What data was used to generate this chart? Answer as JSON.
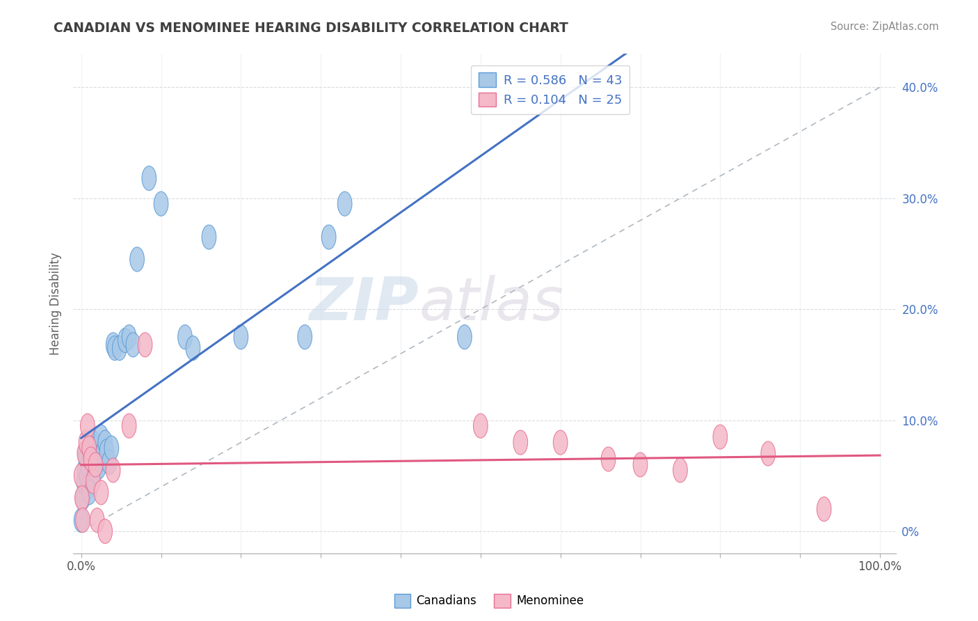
{
  "title": "CANADIAN VS MENOMINEE HEARING DISABILITY CORRELATION CHART",
  "source_text": "Source: ZipAtlas.com",
  "ylabel": "Hearing Disability",
  "xlim": [
    0,
    1.0
  ],
  "ylim": [
    -0.02,
    0.43
  ],
  "ytick_vals": [
    0.0,
    0.1,
    0.2,
    0.3,
    0.4
  ],
  "blue_color": "#a8c8e8",
  "blue_edge_color": "#5b9bd5",
  "pink_color": "#f4b8c8",
  "pink_edge_color": "#e87090",
  "blue_line_color": "#4472c4",
  "pink_line_color": "#e05880",
  "dash_color": "#b0b8c0",
  "watermark_zip": "ZIP",
  "watermark_atlas": "atlas",
  "title_color": "#404040",
  "axis_label_color": "#606060",
  "tick_color": "#505050",
  "ytick_color": "#4472c4",
  "grid_color": "#d8dce0",
  "background_color": "#ffffff",
  "canadians_x": [
    0.0,
    0.002,
    0.003,
    0.004,
    0.005,
    0.006,
    0.007,
    0.008,
    0.009,
    0.01,
    0.011,
    0.012,
    0.013,
    0.015,
    0.016,
    0.017,
    0.018,
    0.02,
    0.021,
    0.022,
    0.025,
    0.027,
    0.03,
    0.032,
    0.035,
    0.038,
    0.04,
    0.042,
    0.048,
    0.055,
    0.06,
    0.065,
    0.07,
    0.085,
    0.1,
    0.13,
    0.14,
    0.16,
    0.2,
    0.28,
    0.31,
    0.33,
    0.48
  ],
  "canadians_y": [
    0.01,
    0.03,
    0.045,
    0.055,
    0.07,
    0.065,
    0.05,
    0.06,
    0.04,
    0.035,
    0.07,
    0.075,
    0.06,
    0.08,
    0.07,
    0.065,
    0.055,
    0.075,
    0.065,
    0.058,
    0.085,
    0.07,
    0.08,
    0.072,
    0.062,
    0.075,
    0.168,
    0.165,
    0.165,
    0.172,
    0.175,
    0.168,
    0.245,
    0.318,
    0.295,
    0.175,
    0.165,
    0.265,
    0.175,
    0.175,
    0.265,
    0.295,
    0.175
  ],
  "menominee_x": [
    0.0,
    0.001,
    0.002,
    0.004,
    0.006,
    0.008,
    0.01,
    0.012,
    0.015,
    0.018,
    0.02,
    0.025,
    0.03,
    0.04,
    0.06,
    0.08,
    0.5,
    0.55,
    0.6,
    0.66,
    0.7,
    0.75,
    0.8,
    0.86,
    0.93
  ],
  "menominee_y": [
    0.05,
    0.03,
    0.01,
    0.07,
    0.08,
    0.095,
    0.075,
    0.065,
    0.045,
    0.06,
    0.01,
    0.035,
    0.0,
    0.055,
    0.095,
    0.168,
    0.095,
    0.08,
    0.08,
    0.065,
    0.06,
    0.055,
    0.085,
    0.07,
    0.02
  ],
  "legend_label1": "R = 0.586   N = 43",
  "legend_label2": "R = 0.104   N = 25",
  "bottom_label1": "Canadians",
  "bottom_label2": "Menominee"
}
